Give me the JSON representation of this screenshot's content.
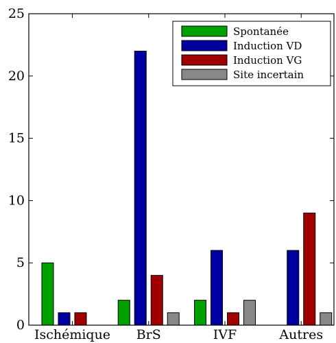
{
  "chart_data": {
    "type": "bar",
    "categories": [
      "Ischémique",
      "BrS",
      "IVF",
      "Autres"
    ],
    "series": [
      {
        "name": "Spontanée",
        "color": "#00a000",
        "values": [
          5,
          2,
          2,
          0
        ]
      },
      {
        "name": "Induction VD",
        "color": "#0000a0",
        "values": [
          1,
          22,
          6,
          6
        ]
      },
      {
        "name": "Induction VG",
        "color": "#a00000",
        "values": [
          1,
          4,
          1,
          9
        ]
      },
      {
        "name": "Site incertain",
        "color": "#888888",
        "values": [
          0,
          1,
          2,
          1
        ]
      }
    ],
    "ylim": [
      0,
      25
    ],
    "yticks": [
      0,
      5,
      10,
      15,
      20,
      25
    ],
    "legend_position": "top-right",
    "grid": false
  }
}
